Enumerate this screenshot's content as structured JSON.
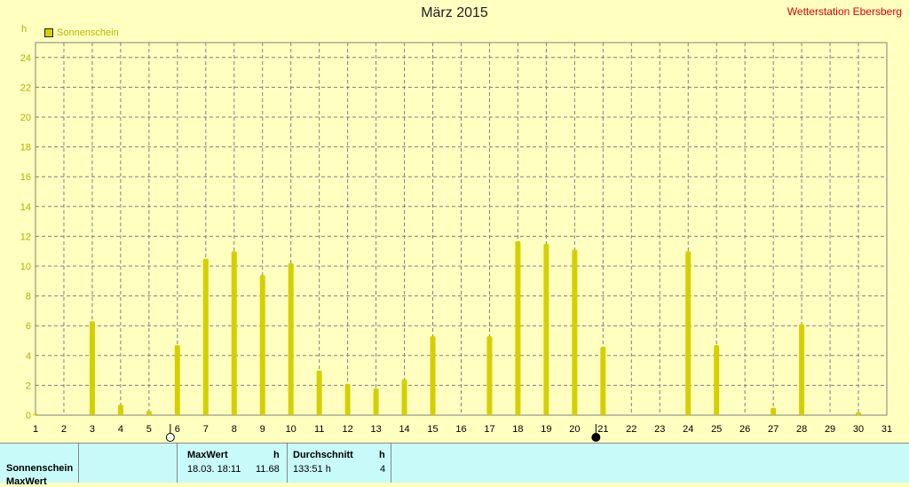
{
  "header": {
    "title": "März 2015",
    "station": "Wetterstation Ebersberg"
  },
  "legend": {
    "label": "Sonnenschein"
  },
  "footer": {
    "row_label": "Sonnenschein",
    "row_label_2": "MaxWert",
    "max_header": "MaxWert",
    "max_unit": "h",
    "max_time": "18.03.  18:11",
    "max_value": "11.68",
    "avg_header": "Durchschnitt",
    "avg_unit": "h",
    "avg_total": "133:51 h",
    "avg_value": "4"
  },
  "colors": {
    "background": "#ffffc0",
    "bar": "#d4d000",
    "grid": "#808080",
    "footer": "#c8fafa",
    "station": "#e00000"
  },
  "moon_phases": [
    {
      "day": 6,
      "phase": "full-moon-icon"
    },
    {
      "day": 21,
      "phase": "new-moon-icon"
    }
  ],
  "chart_data": {
    "type": "bar",
    "title": "März 2015",
    "ylabel": "h",
    "ylim": [
      0,
      25
    ],
    "yticks": [
      0,
      2,
      4,
      6,
      8,
      10,
      12,
      14,
      16,
      18,
      20,
      22,
      24
    ],
    "grid": true,
    "legend": "top-left",
    "categories": [
      "1",
      "2",
      "3",
      "4",
      "5",
      "6",
      "7",
      "8",
      "9",
      "10",
      "11",
      "12",
      "13",
      "14",
      "15",
      "16",
      "17",
      "18",
      "19",
      "20",
      "21",
      "22",
      "23",
      "24",
      "25",
      "26",
      "27",
      "28",
      "29",
      "30",
      "31"
    ],
    "series": [
      {
        "name": "Sonnenschein",
        "values": [
          0.1,
          0,
          6.3,
          0.7,
          0.3,
          4.7,
          10.5,
          11.0,
          9.4,
          10.2,
          3.0,
          2.1,
          1.8,
          2.4,
          5.3,
          0,
          5.3,
          11.68,
          11.5,
          11.1,
          4.6,
          0,
          0,
          11.0,
          4.7,
          0,
          0.5,
          6.1,
          0,
          0.2,
          0
        ]
      }
    ]
  }
}
